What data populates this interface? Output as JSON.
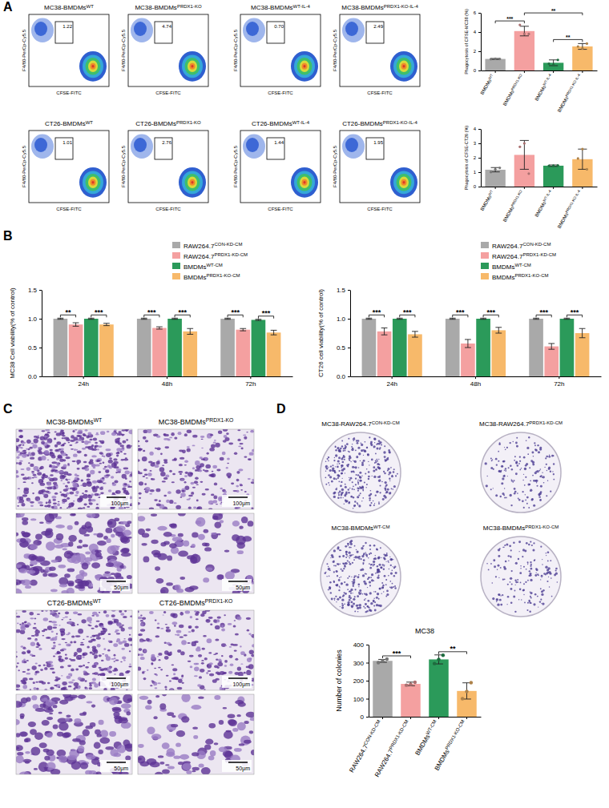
{
  "panel_labels": [
    "A",
    "B",
    "C",
    "D"
  ],
  "flow_plots": {
    "x_label": "CFSE-FITC",
    "y_label": "F4/80-PerCp-Cy5.5",
    "plots": [
      {
        "title": "MC38-BMDMsWT",
        "gate": "1.22"
      },
      {
        "title": "MC38-BMDMsPRDX1-KO",
        "gate": "4.74"
      },
      {
        "title": "MC38-BMDMsWT-IL-4",
        "gate": "0.70"
      },
      {
        "title": "MC38-BMDMsPRDX1-KO-IL-4",
        "gate": "2.49"
      },
      {
        "title": "CT26-BMDMsWT",
        "gate": "1.01"
      },
      {
        "title": "CT26-BMDMsPRDX1-KO",
        "gate": "2.76"
      },
      {
        "title": "CT26-BMDMsWT-IL-4",
        "gate": "1.44"
      },
      {
        "title": "CT26-BMDMsPRDX1-KO-IL-4",
        "gate": "1.95"
      }
    ]
  },
  "micrographs": {
    "scale_bars": [
      "100μm",
      "50μm"
    ],
    "groups": [
      {
        "titles": [
          "MC38-BMDMsWT",
          "MC38-BMDMsPRDX1-KO"
        ]
      },
      {
        "titles": [
          "CT26-BMDMsWT",
          "CT26-BMDMsPRDX1-KO"
        ]
      }
    ]
  },
  "plates": {
    "titles": [
      "MC38-RAW264.7CON-KD-CM",
      "MC38-RAW264.7PRDX1-KD-CM",
      "MC38-BMDMsWT-CM",
      "MC38-BMDMsPRDX1-KO-CM"
    ]
  },
  "chart_data": [
    {
      "type": "bar",
      "y_label": "Phagocytosis of CFSE-MC38 (%)",
      "categories": [
        "BMDMsWT",
        "BMDMsPRDX1-KO",
        "BMDMsWT-IL-4",
        "BMDMsPRDX1-KO-IL-4"
      ],
      "values": [
        1.2,
        4.1,
        0.8,
        2.5
      ],
      "errors": [
        0.05,
        0.5,
        0.3,
        0.3
      ],
      "points": [
        [
          1.18,
          1.22,
          1.2
        ],
        [
          4.74,
          3.8,
          3.8
        ],
        [
          0.7,
          0.6,
          1.1
        ],
        [
          2.49,
          2.3,
          2.8
        ]
      ],
      "colors": [
        "#a9a9a9",
        "#f4a0a0",
        "#2b9a5a",
        "#f7b96a"
      ],
      "ylim": [
        0,
        6
      ],
      "yticks": [
        0,
        2,
        4,
        6
      ],
      "annotations": [
        {
          "text": "***",
          "from": 0,
          "to": 1
        },
        {
          "text": "**",
          "from": 2,
          "to": 3
        },
        {
          "text": "**",
          "from": 1,
          "to": 3
        }
      ]
    },
    {
      "type": "bar",
      "y_label": "Phagocytosis of CFSE-CT26 (%)",
      "categories": [
        "BMDMsWT",
        "BMDMsPRDX1-KO",
        "BMDMsWT-IL-4",
        "BMDMsPRDX1-KO-IL-4"
      ],
      "values": [
        1.17,
        2.2,
        1.45,
        1.9
      ],
      "errors": [
        0.15,
        1.0,
        0.05,
        0.7
      ],
      "points": [
        [
          1.01,
          1.2,
          1.3
        ],
        [
          2.76,
          3.0,
          0.9
        ],
        [
          1.44,
          1.45,
          1.47
        ],
        [
          1.95,
          2.6,
          1.2
        ]
      ],
      "colors": [
        "#a9a9a9",
        "#f4a0a0",
        "#2b9a5a",
        "#f7b96a"
      ],
      "ylim": [
        0,
        4
      ],
      "yticks": [
        0,
        1,
        2,
        3,
        4
      ]
    },
    {
      "type": "bar",
      "y_label": "MC38 Cell viability(% of control)",
      "categories": [
        "24h",
        "48h",
        "72h"
      ],
      "series": [
        {
          "name": "RAW264.7CON-KD-CM",
          "color": "#a9a9a9",
          "values": [
            1.0,
            1.0,
            1.0
          ],
          "errors": [
            0.01,
            0.01,
            0.01
          ]
        },
        {
          "name": "RAW264.7PRDX1-KD-CM",
          "color": "#f4a0a0",
          "values": [
            0.9,
            0.84,
            0.81
          ],
          "errors": [
            0.03,
            0.02,
            0.02
          ]
        },
        {
          "name": "BMDMsWT-CM",
          "color": "#2b9a5a",
          "values": [
            1.0,
            1.0,
            0.98
          ],
          "errors": [
            0.01,
            0.01,
            0.01
          ]
        },
        {
          "name": "BMDMsPRDX1-KO-CM",
          "color": "#f7b96a",
          "values": [
            0.9,
            0.78,
            0.76
          ],
          "errors": [
            0.02,
            0.05,
            0.04
          ]
        }
      ],
      "ylim": [
        0,
        1.5
      ],
      "yticks": [
        {
          "value": 0,
          "label": "0.0"
        },
        {
          "value": 0.5,
          "label": "0.5"
        },
        {
          "value": 1,
          "label": "1.0"
        },
        {
          "value": 1.5,
          "label": "1.5"
        }
      ],
      "legend": "top-right",
      "annotations": [
        {
          "text": "**",
          "category": 0,
          "from": 0,
          "to": 1
        },
        {
          "text": "***",
          "category": 0,
          "from": 2,
          "to": 3
        },
        {
          "text": "***",
          "category": 1,
          "from": 0,
          "to": 1
        },
        {
          "text": "***",
          "category": 1,
          "from": 2,
          "to": 3
        },
        {
          "text": "***",
          "category": 2,
          "from": 0,
          "to": 1
        },
        {
          "text": "***",
          "category": 2,
          "from": 2,
          "to": 3
        }
      ]
    },
    {
      "type": "bar",
      "y_label": "CT26 cell viability(% of control)",
      "categories": [
        "24h",
        "48h",
        "72h"
      ],
      "series": [
        {
          "name": "RAW264.7CON-KD-CM",
          "color": "#a9a9a9",
          "values": [
            1.0,
            1.0,
            1.0
          ],
          "errors": [
            0.01,
            0.01,
            0.01
          ]
        },
        {
          "name": "RAW264.7PRDX1-KD-CM",
          "color": "#f4a0a0",
          "values": [
            0.78,
            0.57,
            0.52
          ],
          "errors": [
            0.06,
            0.07,
            0.05
          ]
        },
        {
          "name": "BMDMsWT-CM",
          "color": "#2b9a5a",
          "values": [
            1.0,
            1.0,
            1.0
          ],
          "errors": [
            0.01,
            0.01,
            0.01
          ]
        },
        {
          "name": "BMDMsPRDX1-KO-CM",
          "color": "#f7b96a",
          "values": [
            0.73,
            0.8,
            0.75
          ],
          "errors": [
            0.05,
            0.05,
            0.08
          ]
        }
      ],
      "ylim": [
        0,
        1.5
      ],
      "yticks": [
        {
          "value": 0,
          "label": "0.0"
        },
        {
          "value": 0.5,
          "label": "0.5"
        },
        {
          "value": 1,
          "label": "1.0"
        },
        {
          "value": 1.5,
          "label": "1.5"
        }
      ],
      "legend": "top-right",
      "annotations": [
        {
          "text": "***",
          "category": 0,
          "from": 0,
          "to": 1
        },
        {
          "text": "***",
          "category": 0,
          "from": 2,
          "to": 3
        },
        {
          "text": "***",
          "category": 1,
          "from": 0,
          "to": 1
        },
        {
          "text": "***",
          "category": 1,
          "from": 2,
          "to": 3
        },
        {
          "text": "***",
          "category": 2,
          "from": 0,
          "to": 1
        },
        {
          "text": "***",
          "category": 2,
          "from": 2,
          "to": 3
        }
      ]
    },
    {
      "type": "bar",
      "title": "MC38",
      "y_label": "Number of colonies",
      "categories": [
        "RAW264.7CON-KD-CM",
        "RAW264.7PRDX1-KD-CM",
        "BMDMsWT-CM",
        "BMDMsPRDX1-KO-CM"
      ],
      "values": [
        310,
        182,
        318,
        143
      ],
      "errors": [
        8,
        10,
        25,
        45
      ],
      "points": [
        [
          300,
          310,
          320
        ],
        [
          175,
          180,
          191
        ],
        [
          295,
          318,
          341
        ],
        [
          100,
          140,
          189
        ]
      ],
      "colors": [
        "#a9a9a9",
        "#f4a0a0",
        "#2b9a5a",
        "#f7b96a"
      ],
      "ylim": [
        0,
        400
      ],
      "yticks": [
        0,
        100,
        200,
        300,
        400
      ],
      "annotations": [
        {
          "text": "***",
          "from": 0,
          "to": 1
        },
        {
          "text": "**",
          "from": 2,
          "to": 3
        }
      ]
    }
  ]
}
